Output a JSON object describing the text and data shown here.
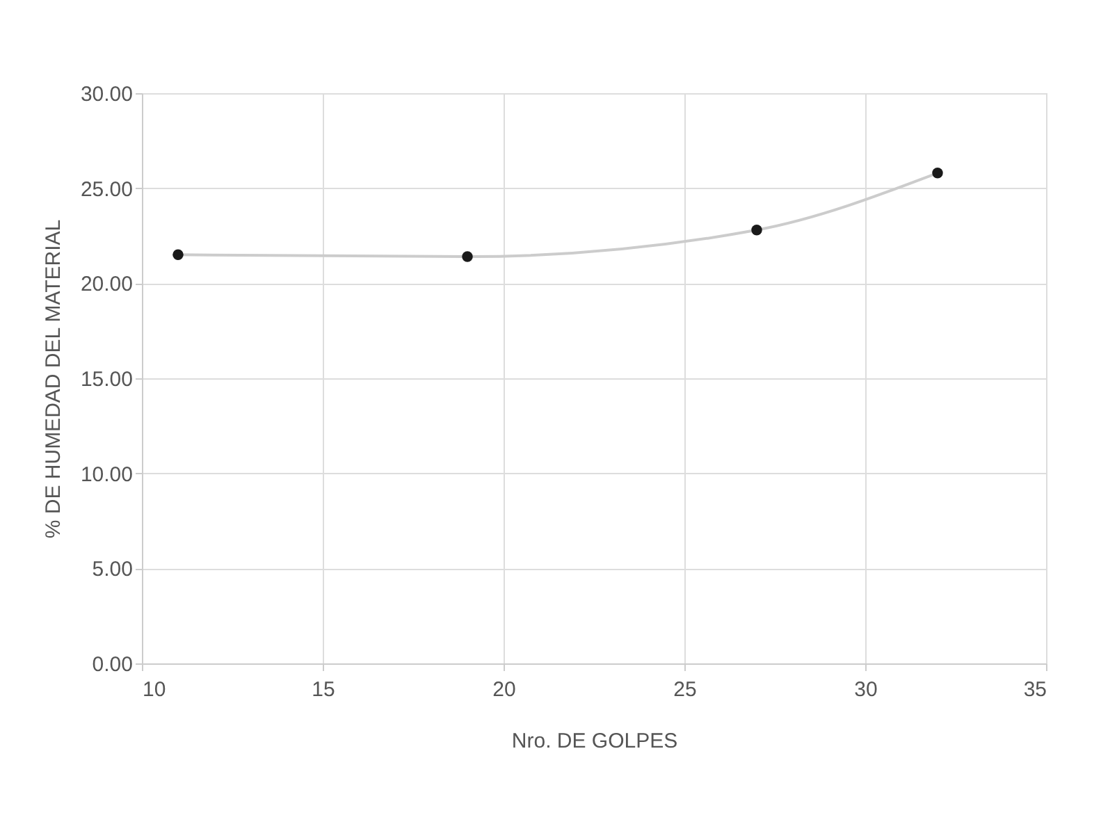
{
  "chart_data": {
    "type": "line",
    "xlabel": "Nro. DE GOLPES",
    "ylabel": "% DE HUMEDAD DEL MATERIAL",
    "x": [
      11,
      19,
      27,
      32
    ],
    "series": [
      {
        "color": "#1a1a1a",
        "values": [
          21.5,
          21.4,
          22.8,
          25.8
        ]
      }
    ],
    "xlim": [
      10,
      35
    ],
    "xticks": [
      10,
      15,
      20,
      25,
      30,
      35
    ],
    "ylim": [
      0,
      30
    ],
    "yticks": [
      {
        "value": 0,
        "label": "0.00"
      },
      {
        "value": 5,
        "label": "5.00"
      },
      {
        "value": 10,
        "label": "10.00"
      },
      {
        "value": 15,
        "label": "15.00"
      },
      {
        "value": 20,
        "label": "20.00"
      },
      {
        "value": 25,
        "label": "25.00"
      },
      {
        "value": 30,
        "label": "30.00"
      }
    ],
    "grid": true,
    "marker": "circle",
    "line_style": "solid"
  }
}
